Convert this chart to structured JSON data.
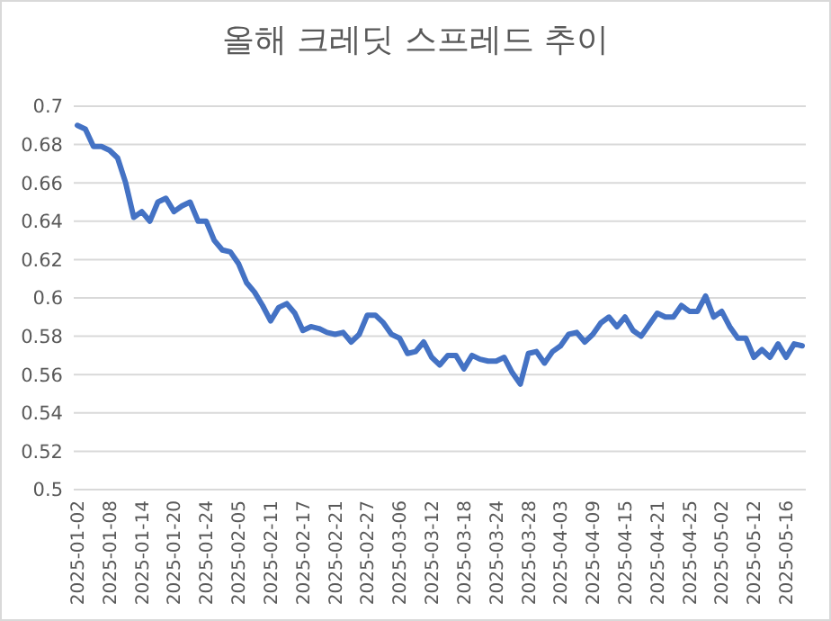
{
  "chart_data": {
    "type": "line",
    "title": "올해 크레딧 스프레드 추이",
    "categories": [
      "2025-01-02",
      null,
      null,
      null,
      "2025-01-08",
      null,
      null,
      null,
      "2025-01-14",
      null,
      null,
      null,
      "2025-01-20",
      null,
      null,
      null,
      "2025-01-24",
      null,
      null,
      null,
      "2025-02-05",
      null,
      null,
      null,
      "2025-02-11",
      null,
      null,
      null,
      "2025-02-17",
      null,
      null,
      null,
      "2025-02-21",
      null,
      null,
      null,
      "2025-02-27",
      null,
      null,
      null,
      "2025-03-06",
      null,
      null,
      null,
      "2025-03-12",
      null,
      null,
      null,
      "2025-03-18",
      null,
      null,
      null,
      "2025-03-24",
      null,
      null,
      null,
      "2025-03-28",
      null,
      null,
      null,
      "2025-04-03",
      null,
      null,
      null,
      "2025-04-09",
      null,
      null,
      null,
      "2025-04-15",
      null,
      null,
      null,
      "2025-04-21",
      null,
      null,
      null,
      "2025-04-25",
      null,
      null,
      null,
      "2025-05-02",
      null,
      null,
      null,
      "2025-05-12",
      null,
      null,
      null,
      "2025-05-16",
      null,
      null
    ],
    "series": [
      {
        "color": "#4472c4",
        "values": [
          0.69,
          0.688,
          0.679,
          0.679,
          0.677,
          0.673,
          0.66,
          0.642,
          0.645,
          0.64,
          0.65,
          0.652,
          0.645,
          0.648,
          0.65,
          0.64,
          0.64,
          0.63,
          0.625,
          0.624,
          0.618,
          0.608,
          0.603,
          0.596,
          0.588,
          0.595,
          0.597,
          0.592,
          0.583,
          0.585,
          0.584,
          0.582,
          0.581,
          0.582,
          0.577,
          0.581,
          0.591,
          0.591,
          0.587,
          0.581,
          0.579,
          0.571,
          0.572,
          0.577,
          0.569,
          0.565,
          0.57,
          0.57,
          0.563,
          0.57,
          0.568,
          0.567,
          0.567,
          0.569,
          0.561,
          0.555,
          0.571,
          0.572,
          0.566,
          0.572,
          0.575,
          0.581,
          0.582,
          0.577,
          0.581,
          0.587,
          0.59,
          0.585,
          0.59,
          0.583,
          0.58,
          0.586,
          0.592,
          0.59,
          0.59,
          0.596,
          0.593,
          0.593,
          0.601,
          0.59,
          0.593,
          0.585,
          0.579,
          0.579,
          0.569,
          0.573,
          0.569,
          0.576,
          0.569,
          0.576,
          0.575
        ]
      }
    ],
    "ylim": [
      0.5,
      0.7
    ],
    "yticks": [
      0.5,
      0.52,
      0.54,
      0.56,
      0.58,
      0.6,
      0.62,
      0.64,
      0.66,
      0.68,
      0.7
    ],
    "grid": "y",
    "marker": "none",
    "line_style": "solid"
  }
}
